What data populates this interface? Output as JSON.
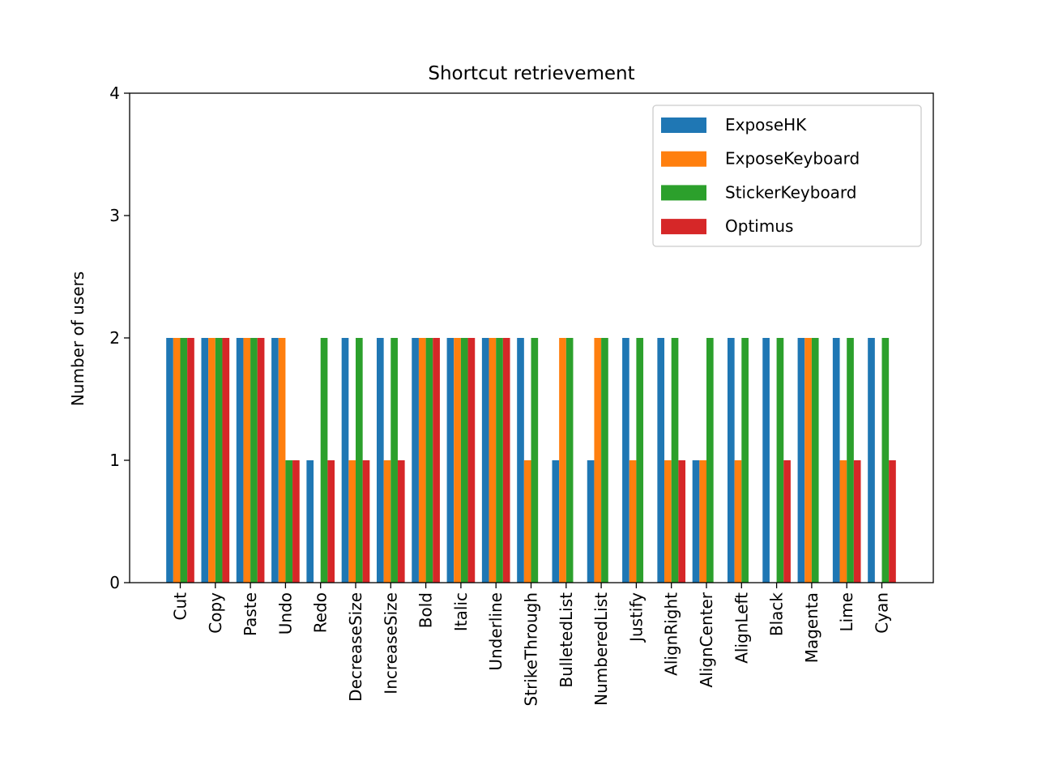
{
  "chart_data": {
    "type": "bar",
    "title": "Shortcut retrievement",
    "xlabel": "",
    "ylabel": "Number of users",
    "ylim": [
      0,
      4
    ],
    "yticks": [
      "0",
      "1",
      "2",
      "3",
      "4"
    ],
    "grid": false,
    "legend_position": "top-right",
    "categories": [
      "Cut",
      "Copy",
      "Paste",
      "Undo",
      "Redo",
      "DecreaseSize",
      "IncreaseSize",
      "Bold",
      "Italic",
      "Underline",
      "StrikeThrough",
      "BulletedList",
      "NumberedList",
      "Justify",
      "AlignRight",
      "AlignCenter",
      "AlignLeft",
      "Black",
      "Magenta",
      "Lime",
      "Cyan"
    ],
    "series": [
      {
        "name": "ExposeHK",
        "color": "#1f77b4",
        "values": [
          2,
          2,
          2,
          2,
          1,
          2,
          2,
          2,
          2,
          2,
          2,
          1,
          1,
          2,
          2,
          1,
          2,
          2,
          2,
          2,
          2
        ]
      },
      {
        "name": "ExposeKeyboard",
        "color": "#ff7f0e",
        "values": [
          2,
          2,
          2,
          2,
          0,
          1,
          1,
          2,
          2,
          2,
          1,
          2,
          2,
          1,
          1,
          1,
          1,
          0,
          2,
          1,
          0
        ]
      },
      {
        "name": "StickerKeyboard",
        "color": "#2ca02c",
        "values": [
          2,
          2,
          2,
          1,
          2,
          2,
          2,
          2,
          2,
          2,
          2,
          2,
          2,
          2,
          2,
          2,
          2,
          2,
          2,
          2,
          2
        ]
      },
      {
        "name": "Optimus",
        "color": "#d62728",
        "values": [
          2,
          2,
          2,
          1,
          1,
          1,
          1,
          2,
          2,
          2,
          0,
          0,
          0,
          0,
          1,
          0,
          0,
          1,
          0,
          1,
          1
        ]
      }
    ]
  }
}
